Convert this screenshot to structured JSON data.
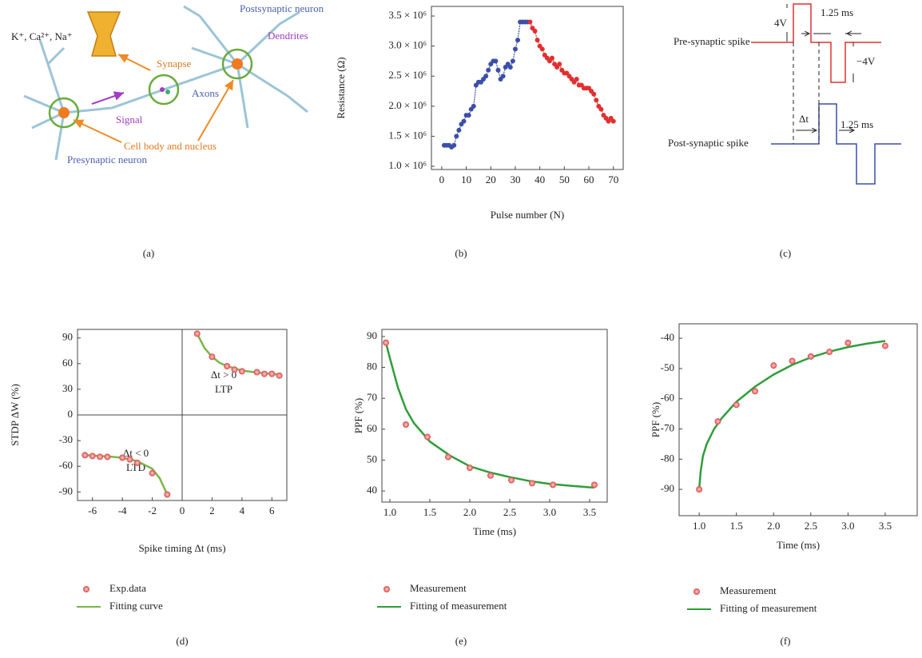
{
  "chart_data": [
    {
      "type": "line",
      "x_label": "Pulse number (N)",
      "y_label": "Resistance (Ω)",
      "xlim": [
        -4.2,
        74
      ],
      "xticks": [
        0,
        10,
        20,
        30,
        40,
        50,
        60,
        70
      ],
      "ylim": [
        947000,
        3660000
      ],
      "yticks": [
        {
          "value": 1000000,
          "label": "1.0 × 10⁶"
        },
        {
          "value": 1500000,
          "label": "1.5 × 10⁶"
        },
        {
          "value": 2000000,
          "label": "2.0 × 10⁶"
        },
        {
          "value": 2500000,
          "label": "2.5 × 10⁶"
        },
        {
          "value": 3000000,
          "label": "3.0 × 10⁶"
        },
        {
          "value": 3500000,
          "label": "3.5 × 10⁶"
        }
      ],
      "series": [
        {
          "color": "#3b4fa8",
          "mode": "line+markers",
          "x": [
            1,
            2,
            3,
            4,
            5,
            6,
            7,
            8,
            9,
            10,
            11,
            12,
            13,
            14,
            15,
            16,
            17,
            18,
            19,
            20,
            21,
            22,
            23,
            24,
            25,
            26,
            27,
            28,
            29,
            30,
            31,
            32,
            33,
            34,
            35
          ],
          "values": [
            1350000,
            1350000,
            1350000,
            1320000,
            1350000,
            1500000,
            1600000,
            1700000,
            1750000,
            1850000,
            1850000,
            1950000,
            2000000,
            2350000,
            2400000,
            2400000,
            2450000,
            2500000,
            2600000,
            2700000,
            2750000,
            2750000,
            2600000,
            2450000,
            2500000,
            2650000,
            2700000,
            2650000,
            2750000,
            2950000,
            3100000,
            3400000,
            3400000,
            3400000,
            3400000
          ]
        },
        {
          "color": "#e03030",
          "mode": "line+markers",
          "x": [
            36,
            37,
            38,
            39,
            40,
            41,
            42,
            43,
            44,
            45,
            46,
            47,
            48,
            49,
            50,
            51,
            52,
            53,
            54,
            55,
            56,
            57,
            58,
            59,
            60,
            61,
            62,
            63,
            64,
            65,
            66,
            67,
            68,
            69,
            70
          ],
          "values": [
            3400000,
            3300000,
            3250000,
            3100000,
            3000000,
            2950000,
            2850000,
            2800000,
            2750000,
            2800000,
            2700000,
            2650000,
            2700000,
            2600000,
            2550000,
            2550000,
            2500000,
            2450000,
            2400000,
            2450000,
            2350000,
            2350000,
            2300000,
            2300000,
            2300000,
            2250000,
            2200000,
            2100000,
            2000000,
            1950000,
            1850000,
            1800000,
            1750000,
            1800000,
            1750000
          ]
        }
      ]
    },
    {
      "type": "scatter",
      "x_label": "Spike timing Δt (ms)",
      "y_label": "STDP ΔW (%)",
      "xlim": [
        -7,
        7
      ],
      "xticks": [
        -6,
        -4,
        -2,
        0,
        2,
        4,
        6
      ],
      "ylim": [
        -100,
        100
      ],
      "yticks": [
        -90,
        -60,
        -30,
        0,
        30,
        60,
        90
      ],
      "zero_lines": true,
      "annotations": [
        "Δt > 0",
        "LTP",
        "Δt < 0",
        "LTD"
      ],
      "series": [
        {
          "name": "Exp.data",
          "color": "#e8605f",
          "mode": "markers",
          "x": [
            -6.5,
            -6,
            -5.5,
            -5,
            -4,
            -3.5,
            -3,
            -2,
            -1,
            1,
            2,
            3,
            3.5,
            4,
            5,
            5.5,
            6,
            6.5
          ],
          "values": [
            -47,
            -48,
            -49,
            -49,
            -50,
            -52,
            -56,
            -68,
            -93,
            95,
            68,
            57,
            53,
            51,
            50,
            48,
            48,
            46
          ]
        },
        {
          "name": "Fitting curve",
          "color": "#7ab648",
          "mode": "line",
          "x": [
            -6.5,
            -5,
            -4,
            -3,
            -2,
            -1.5,
            -1,
            0,
            1,
            1.5,
            2,
            2.5,
            3,
            4,
            5,
            6,
            6.5
          ],
          "values": [
            -47,
            -48.5,
            -50,
            -54,
            -63,
            -74,
            -93,
            null,
            95,
            78,
            68,
            61,
            57,
            52,
            49.5,
            48,
            47
          ]
        }
      ]
    },
    {
      "type": "scatter",
      "x_label": "Time (ms)",
      "y_label": "PPF (%)",
      "xlim": [
        0.9,
        3.72
      ],
      "xticks": [
        {
          "value": 1,
          "label": "1.0"
        },
        1.5,
        {
          "value": 2,
          "label": "2.0"
        },
        2.5,
        {
          "value": 3,
          "label": "3.0"
        },
        3.5
      ],
      "ylim": [
        36.4,
        92.3
      ],
      "yticks": [
        40,
        50,
        60,
        70,
        80,
        90
      ],
      "series": [
        {
          "name": "Measurement",
          "color": "#e8605f",
          "mode": "markers",
          "x": [
            0.95,
            1.2,
            1.47,
            1.73,
            2.0,
            2.26,
            2.52,
            2.78,
            3.04,
            3.56
          ],
          "values": [
            88,
            61.5,
            57.5,
            51,
            47.5,
            45,
            43.5,
            42.5,
            42,
            42
          ]
        },
        {
          "name": "Fitting of measurement",
          "color": "#2e9e3a",
          "mode": "line",
          "x": [
            0.95,
            1.0,
            1.1,
            1.2,
            1.3,
            1.5,
            1.75,
            2.0,
            2.25,
            2.5,
            2.75,
            3.0,
            3.25,
            3.5,
            3.56
          ],
          "values": [
            88,
            83,
            73.5,
            66.5,
            62,
            56,
            51.5,
            48,
            46,
            44.5,
            43.2,
            42.3,
            41.7,
            41.2,
            41.1
          ]
        }
      ]
    },
    {
      "type": "scatter",
      "x_label": "Time (ms)",
      "y_label": "PPF (%)",
      "xlim": [
        0.73,
        3.93
      ],
      "xticks": [
        {
          "value": 1,
          "label": "1.0"
        },
        1.5,
        {
          "value": 2,
          "label": "2.0"
        },
        2.5,
        {
          "value": 3,
          "label": "3.0"
        },
        3.5
      ],
      "ylim": [
        -98.7,
        -35.2
      ],
      "yticks": [
        -90,
        -80,
        -70,
        -60,
        -50,
        -40
      ],
      "series": [
        {
          "name": "Measurement",
          "color": "#e8605f",
          "mode": "markers",
          "x": [
            1,
            1.25,
            1.5,
            1.75,
            2,
            2.25,
            2.5,
            2.75,
            3,
            3.5
          ],
          "values": [
            -90,
            -67.5,
            -62,
            -57.5,
            -49,
            -47.5,
            -46,
            -44.5,
            -41.5,
            -42.5
          ]
        },
        {
          "name": "Fitting of measurement",
          "color": "#2e9e3a",
          "mode": "line",
          "x": [
            1.0,
            1.02,
            1.05,
            1.1,
            1.2,
            1.3,
            1.5,
            1.75,
            2.0,
            2.25,
            2.5,
            2.75,
            3.0,
            3.25,
            3.5
          ],
          "values": [
            -90,
            -84,
            -79,
            -75,
            -70,
            -66.5,
            -61,
            -56,
            -52,
            -48.8,
            -46.3,
            -44.4,
            -42.9,
            -41.8,
            -40.9
          ]
        }
      ]
    }
  ],
  "diagram_a": {
    "ions": "K⁺, Ca²⁺, Na⁺",
    "postsynaptic": "Postsynaptic neuron",
    "dendrites": "Dendrites",
    "synapse": "Synapse",
    "axons": "Axons",
    "signal": "Signal",
    "cell_body": "Cell body and nucleus",
    "presynaptic": "Presynaptic neuron"
  },
  "diagram_c": {
    "pre_amplitude": "4V",
    "pre_width": "1.25 ms",
    "pre_negative": "−4V",
    "pre_label": "Pre-synaptic spike",
    "delta_t": "Δt",
    "post_width": "1.25 ms",
    "post_label": "Post-synaptic spike"
  },
  "panel_labels": [
    "(a)",
    "(b)",
    "(c)",
    "(d)",
    "(e)",
    "(f)"
  ]
}
